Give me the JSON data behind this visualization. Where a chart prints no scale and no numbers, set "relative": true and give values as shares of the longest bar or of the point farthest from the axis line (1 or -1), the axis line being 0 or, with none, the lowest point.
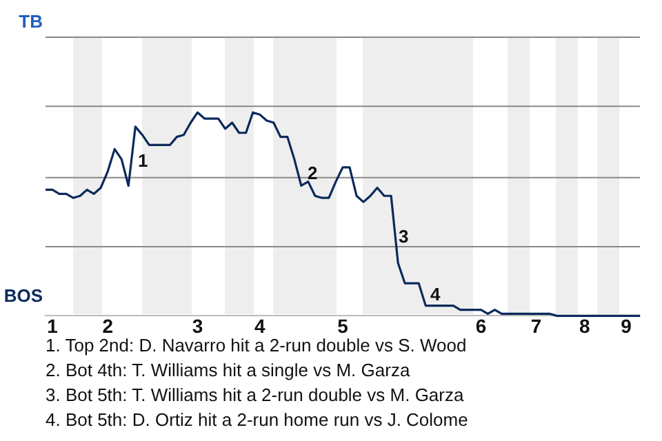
{
  "chart_data": {
    "type": "line",
    "categories": [
      null,
      "1",
      null,
      null,
      null,
      null,
      null,
      null,
      null,
      "2",
      null,
      null,
      null,
      null,
      null,
      null,
      null,
      null,
      null,
      null,
      null,
      null,
      "3",
      null,
      null,
      null,
      null,
      null,
      null,
      null,
      null,
      "4",
      null,
      null,
      null,
      null,
      null,
      null,
      null,
      null,
      null,
      null,
      null,
      "5",
      null,
      null,
      null,
      null,
      null,
      null,
      null,
      null,
      null,
      null,
      null,
      null,
      null,
      null,
      null,
      null,
      null,
      null,
      null,
      "6",
      null,
      null,
      null,
      null,
      null,
      null,
      null,
      "7",
      null,
      null,
      null,
      null,
      null,
      null,
      "8",
      null,
      null,
      null,
      null,
      null,
      "9",
      null,
      null
    ],
    "relative": true,
    "series": [
      {
        "color": "#0b2a5c",
        "values": [
          0.62,
          0.62,
          0.6,
          0.6,
          0.58,
          0.59,
          0.62,
          0.6,
          0.63,
          0.71,
          0.82,
          0.77,
          0.64,
          0.93,
          0.89,
          0.84,
          0.84,
          0.84,
          0.84,
          0.88,
          0.89,
          0.95,
          1,
          0.97,
          0.97,
          0.97,
          0.92,
          0.95,
          0.9,
          0.9,
          1,
          0.99,
          0.96,
          0.95,
          0.88,
          0.88,
          0.77,
          0.64,
          0.66,
          0.59,
          0.58,
          0.58,
          0.66,
          0.73,
          0.73,
          0.59,
          0.56,
          0.59,
          0.63,
          0.59,
          0.59,
          0.26,
          0.16,
          0.16,
          0.16,
          0.05,
          0.05,
          0.05,
          0.05,
          0.05,
          0.03,
          0.03,
          0.03,
          0.03,
          0.01,
          0.03,
          0.01,
          0.01,
          0.01,
          0.01,
          0.01,
          0.01,
          0.01,
          0.01,
          0,
          0,
          0,
          0,
          0,
          0,
          0,
          0,
          0,
          0,
          0,
          0,
          0
        ]
      }
    ],
    "ref_lines": [
      {
        "axis": "y",
        "value": 0.34,
        "color": "#888888"
      },
      {
        "axis": "y",
        "value": 0.68,
        "color": "#888888"
      },
      {
        "axis": "y",
        "value": 1.03,
        "color": "#888888"
      },
      {
        "axis": "y",
        "value": 1.37,
        "color": "#888888"
      }
    ],
    "legend": false,
    "marker": "none",
    "line_style": "solid",
    "annotations": [
      "TB",
      "BOS",
      "1",
      "2",
      "3",
      "4",
      "1. Top 2nd: D. Navarro hit a 2-run double vs S. Wood",
      "2. Bot 4th: T. Williams hit a single vs M. Garza",
      "3. Bot 5th: T. Williams hit a 2-run double vs M. Garza",
      "4. Bot 5th: D. Ortiz hit a 2-run home run vs J. Colome"
    ]
  }
}
